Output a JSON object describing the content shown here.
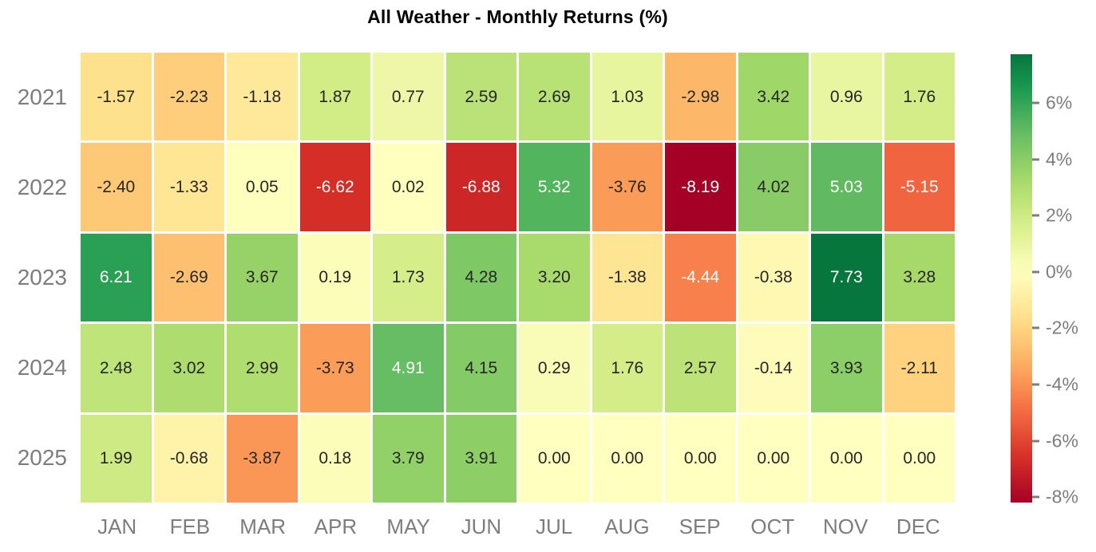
{
  "title": "All Weather - Monthly Returns (%)",
  "chart_data": {
    "type": "heatmap",
    "title": "All Weather - Monthly Returns (%)",
    "rows": [
      "2021",
      "2022",
      "2023",
      "2024",
      "2025"
    ],
    "columns": [
      "JAN",
      "FEB",
      "MAR",
      "APR",
      "MAY",
      "JUN",
      "JUL",
      "AUG",
      "SEP",
      "OCT",
      "NOV",
      "DEC"
    ],
    "values": [
      [
        -1.57,
        -2.23,
        -1.18,
        1.87,
        0.77,
        2.59,
        2.69,
        1.03,
        -2.98,
        3.42,
        0.96,
        1.76
      ],
      [
        -2.4,
        -1.33,
        0.05,
        -6.62,
        0.02,
        -6.88,
        5.32,
        -3.76,
        -8.19,
        4.02,
        5.03,
        -5.15
      ],
      [
        6.21,
        -2.69,
        3.67,
        0.19,
        1.73,
        4.28,
        3.2,
        -1.38,
        -4.44,
        -0.38,
        7.73,
        3.28
      ],
      [
        2.48,
        3.02,
        2.99,
        -3.73,
        4.91,
        4.15,
        0.29,
        1.76,
        2.57,
        -0.14,
        3.93,
        -2.11
      ],
      [
        1.99,
        -0.68,
        -3.87,
        0.18,
        3.79,
        3.91,
        0.0,
        0.0,
        0.0,
        0.0,
        0.0,
        0.0
      ]
    ],
    "value_decimals": 2,
    "colormap": "RdYlGn",
    "vmin": -8.19,
    "vmax": 7.73,
    "center": 0,
    "grid_gap_color": "#ffffff",
    "legend_position": "right",
    "colorbar_ticks": [
      {
        "value": 6,
        "label": "6%"
      },
      {
        "value": 4,
        "label": "4%"
      },
      {
        "value": 2,
        "label": "2%"
      },
      {
        "value": 0,
        "label": "0%"
      },
      {
        "value": -2,
        "label": "-2%"
      },
      {
        "value": -4,
        "label": "-4%"
      },
      {
        "value": -6,
        "label": "-6%"
      },
      {
        "value": -8,
        "label": "-8%"
      }
    ]
  },
  "colors": {
    "background": "#ffffff",
    "axis_label": "#7d7d7d",
    "title_text": "#000000",
    "annotation_dark": "#262626",
    "annotation_light": "#ffffff",
    "rdylgn_anchors": [
      "#a50026",
      "#d73027",
      "#f46d43",
      "#fdae61",
      "#fee08b",
      "#ffffbf",
      "#d9ef8b",
      "#a6d96a",
      "#66bd63",
      "#1a9850",
      "#006837"
    ]
  }
}
